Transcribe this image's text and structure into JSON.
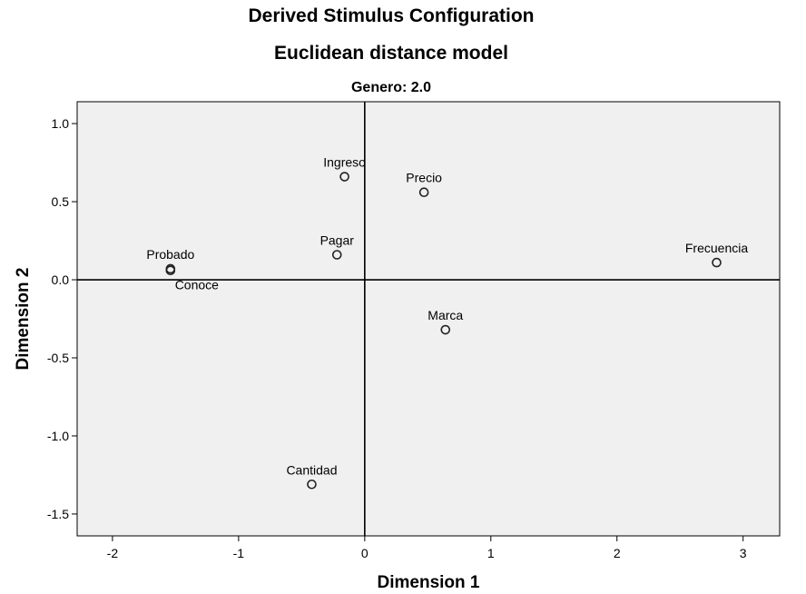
{
  "chart_data": {
    "type": "scatter",
    "title": "Derived Stimulus Configuration",
    "subtitle": "Euclidean distance model",
    "panel_title": "Genero: 2.0",
    "xlabel": "Dimension 1",
    "ylabel": "Dimension 2",
    "xlim": [
      -2.28,
      3.29
    ],
    "ylim": [
      -1.64,
      1.14
    ],
    "xticks": [
      -2,
      -1,
      0,
      1,
      2,
      3
    ],
    "xtick_labels": [
      "-2",
      "-1",
      "0",
      "1",
      "2",
      "3"
    ],
    "yticks": [
      1.0,
      0.5,
      0.0,
      -0.5,
      -1.0,
      -1.5
    ],
    "ytick_labels": [
      "1.0",
      "0.5",
      "0.0",
      "-0.5",
      "-1.0",
      "-1.5"
    ],
    "reference_lines": {
      "x": 0,
      "y": 0
    },
    "grid": false,
    "legend": "none",
    "points": [
      {
        "label": "Ingreso",
        "x": -0.16,
        "y": 0.66,
        "label_pos": "above"
      },
      {
        "label": "Precio",
        "x": 0.47,
        "y": 0.56,
        "label_pos": "above"
      },
      {
        "label": "Pagar",
        "x": -0.22,
        "y": 0.16,
        "label_pos": "above"
      },
      {
        "label": "Probado",
        "x": -1.54,
        "y": 0.07,
        "label_pos": "above"
      },
      {
        "label": "Conoce",
        "x": -1.54,
        "y": 0.06,
        "label_pos": "below"
      },
      {
        "label": "Frecuencia",
        "x": 2.79,
        "y": 0.11,
        "label_pos": "above"
      },
      {
        "label": "Marca",
        "x": 0.64,
        "y": -0.32,
        "label_pos": "above"
      },
      {
        "label": "Cantidad",
        "x": -0.42,
        "y": -1.31,
        "label_pos": "above"
      }
    ],
    "colors": {
      "plot_background": "#f0f0f0",
      "marker_stroke": "#222222",
      "axis": "#000000"
    }
  }
}
